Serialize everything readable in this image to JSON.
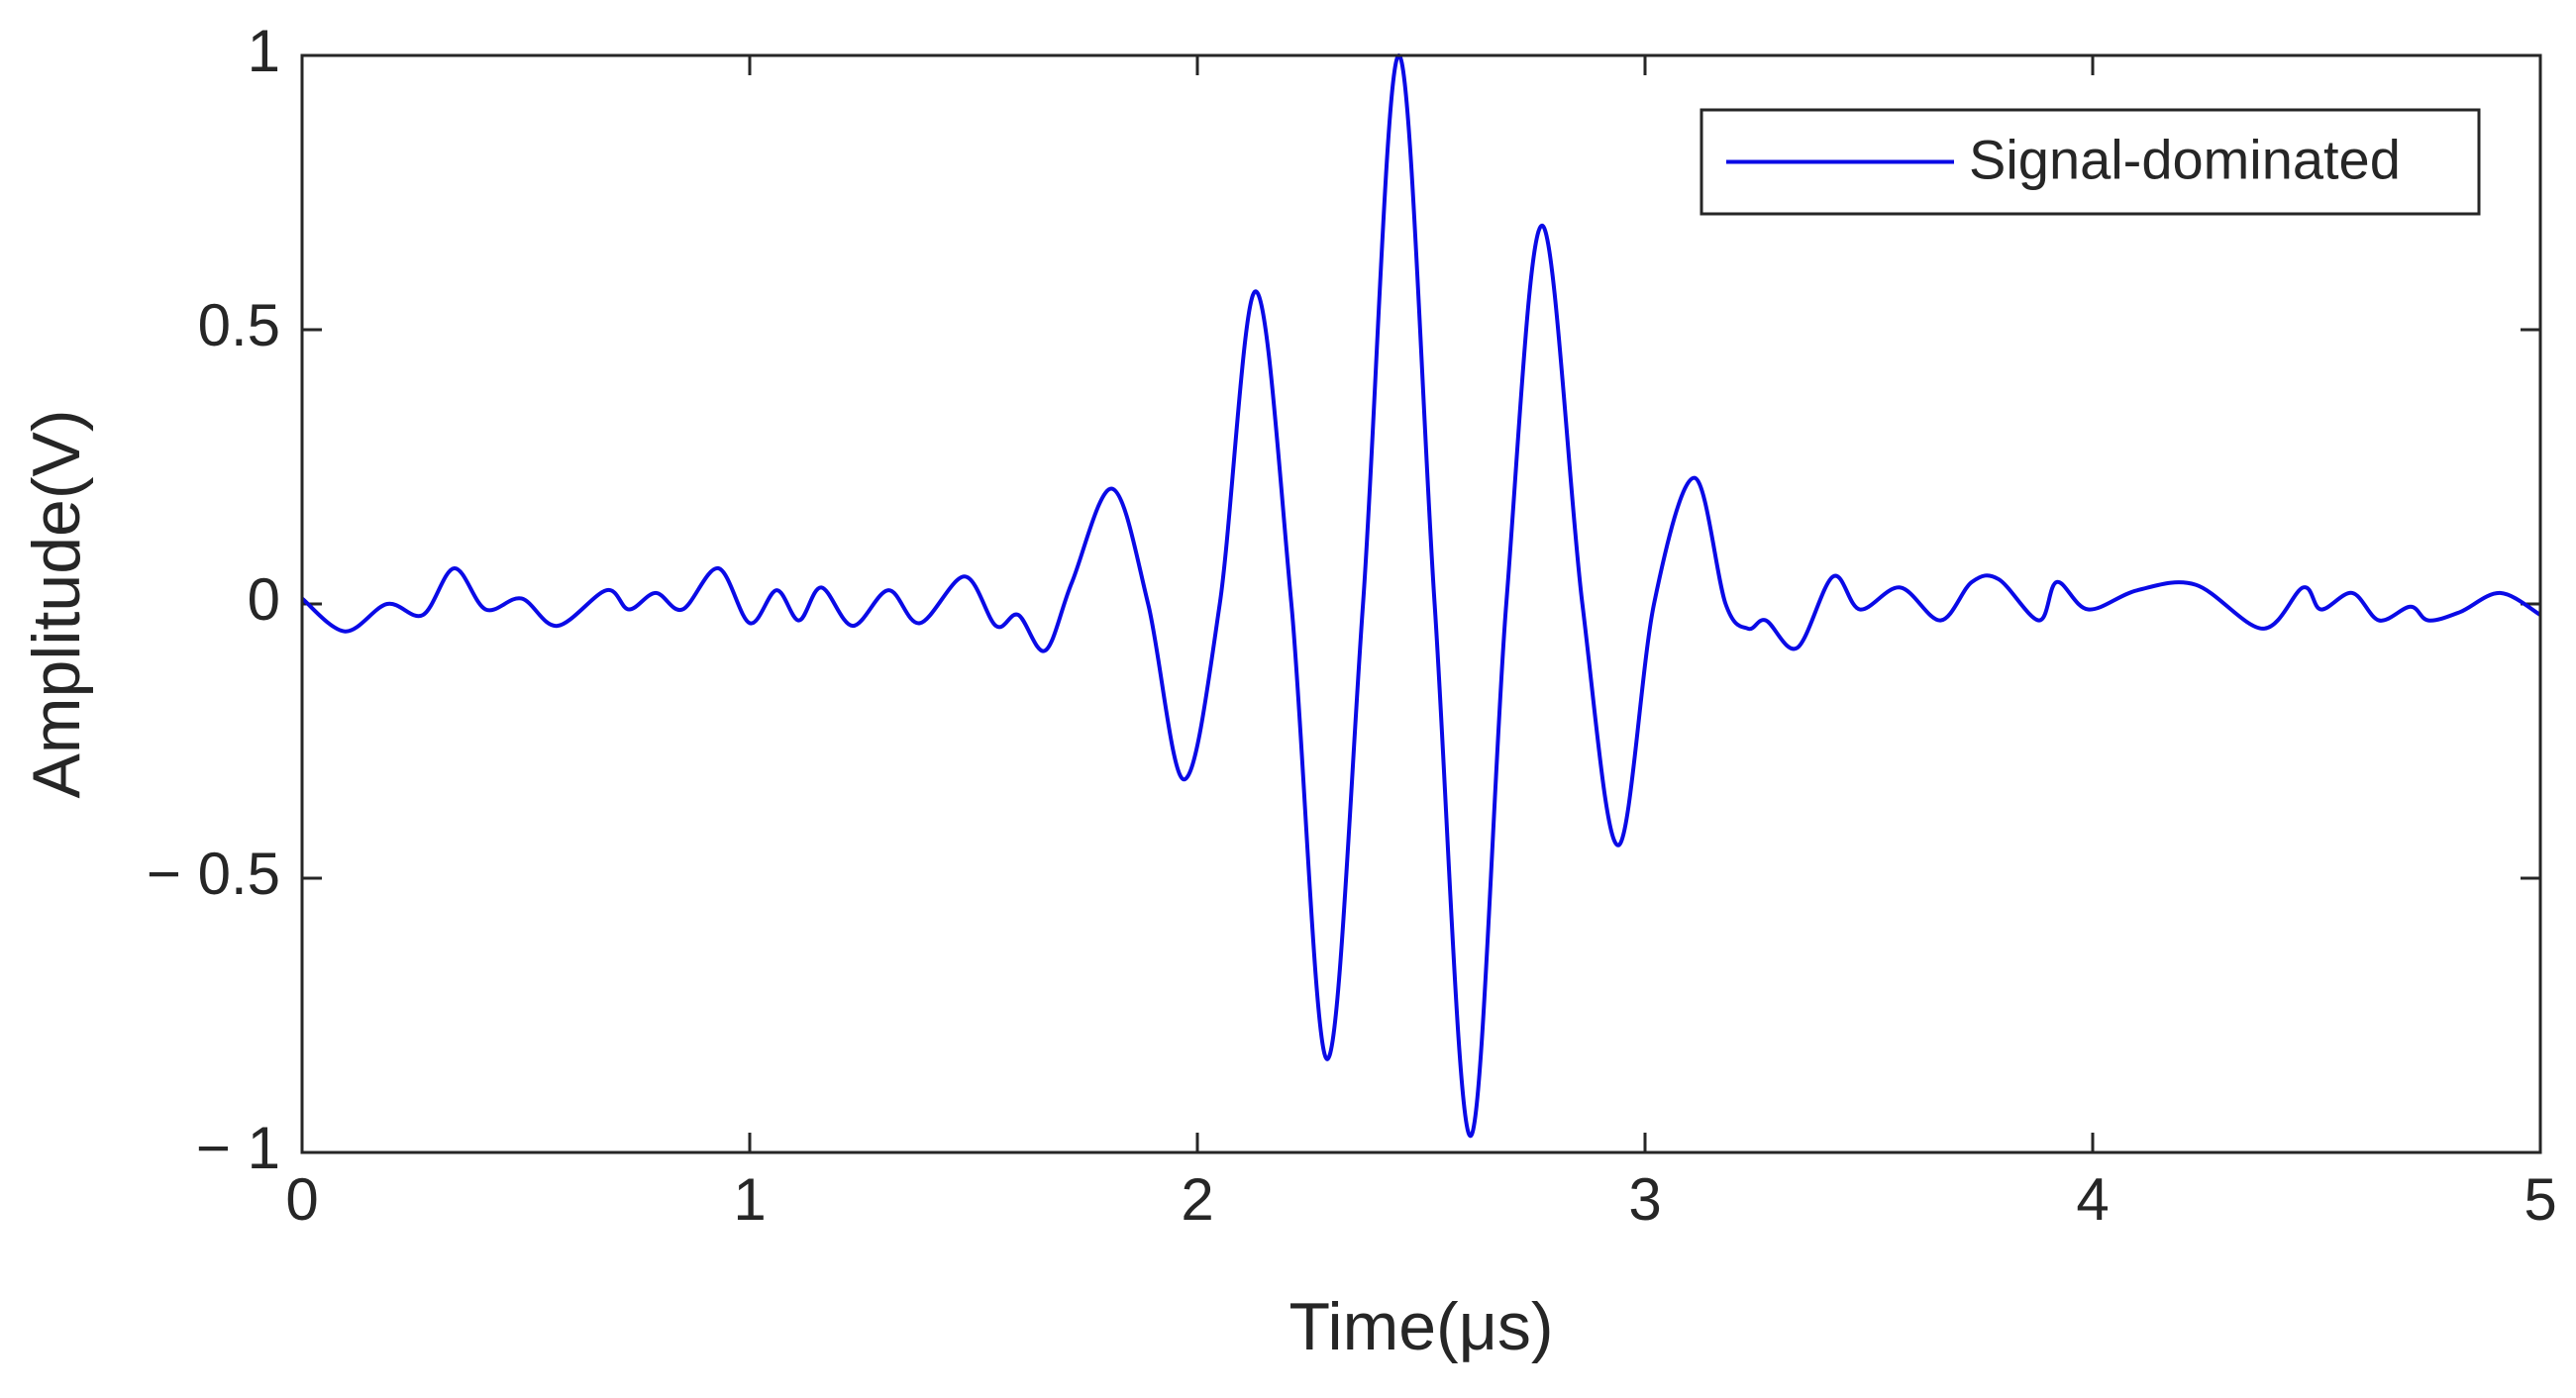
{
  "chart_data": {
    "type": "line",
    "x_label": "Time(μs)",
    "y_label": "Amplitude(V)",
    "x": [
      0,
      0.096,
      0.19,
      0.27,
      0.34,
      0.41,
      0.49,
      0.57,
      0.68,
      0.73,
      0.79,
      0.85,
      0.93,
      1.0,
      1.06,
      1.11,
      1.16,
      1.23,
      1.31,
      1.38,
      1.48,
      1.55,
      1.6,
      1.66,
      1.72,
      1.81,
      1.89,
      1.97,
      2.05,
      2.13,
      2.21,
      2.29,
      2.37,
      2.45,
      2.53,
      2.61,
      2.69,
      2.77,
      2.86,
      2.94,
      3.02,
      3.11,
      3.18,
      3.23,
      3.27,
      3.34,
      3.42,
      3.48,
      3.57,
      3.66,
      3.73,
      3.79,
      3.88,
      3.92,
      3.99,
      4.1,
      4.23,
      4.38,
      4.47,
      4.51,
      4.58,
      4.64,
      4.71,
      4.75,
      4.82,
      4.91,
      5
    ],
    "series": [
      {
        "name": "Signal-dominated",
        "color": "#0a0ae6",
        "values": [
          0.01,
          -0.05,
          0,
          -0.02,
          0.065,
          -0.01,
          0.01,
          -0.04,
          0.025,
          -0.01,
          0.02,
          -0.01,
          0.065,
          -0.035,
          0.025,
          -0.03,
          0.03,
          -0.04,
          0.025,
          -0.035,
          0.05,
          -0.04,
          -0.02,
          -0.085,
          0.04,
          0.21,
          0,
          -0.32,
          0,
          0.57,
          0,
          -0.83,
          0,
          1.0,
          0,
          -0.97,
          0,
          0.69,
          0,
          -0.44,
          0,
          0.23,
          0,
          -0.045,
          -0.03,
          -0.08,
          0.05,
          -0.01,
          0.03,
          -0.03,
          0.04,
          0.045,
          -0.03,
          0.04,
          -0.01,
          0.025,
          0.035,
          -0.045,
          0.03,
          -0.01,
          0.02,
          -0.03,
          -0.005,
          -0.03,
          -0.015,
          0.02,
          -0.02
        ]
      }
    ],
    "xlim": [
      0,
      5
    ],
    "xticks": [
      0,
      1,
      2,
      3,
      4,
      5
    ],
    "ylim": [
      -1,
      1
    ],
    "yticks": [
      {
        "value": -1,
        "label": "− 1"
      },
      {
        "value": -0.5,
        "label": "− 0.5"
      },
      0,
      0.5,
      1
    ],
    "grid": false,
    "legend": "upper-right"
  }
}
